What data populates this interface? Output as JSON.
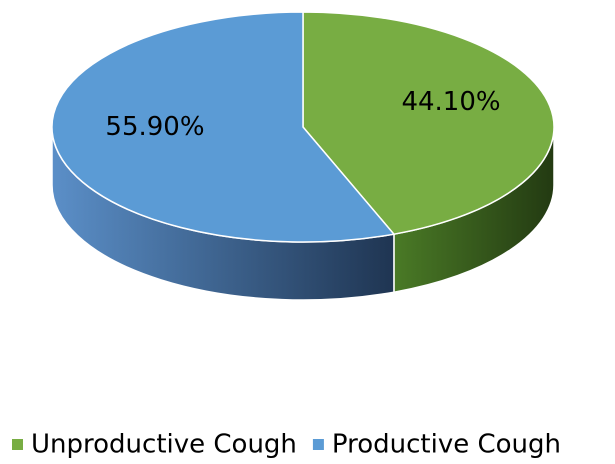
{
  "chart_data": {
    "type": "pie",
    "categories": [
      "Unproductive Cough",
      "Productive Cough"
    ],
    "values": [
      44.1,
      55.9
    ],
    "value_labels": [
      "44.10%",
      "55.90%"
    ],
    "colors": [
      "#78ad43",
      "#5b9bd5"
    ],
    "legend": "bottom"
  }
}
